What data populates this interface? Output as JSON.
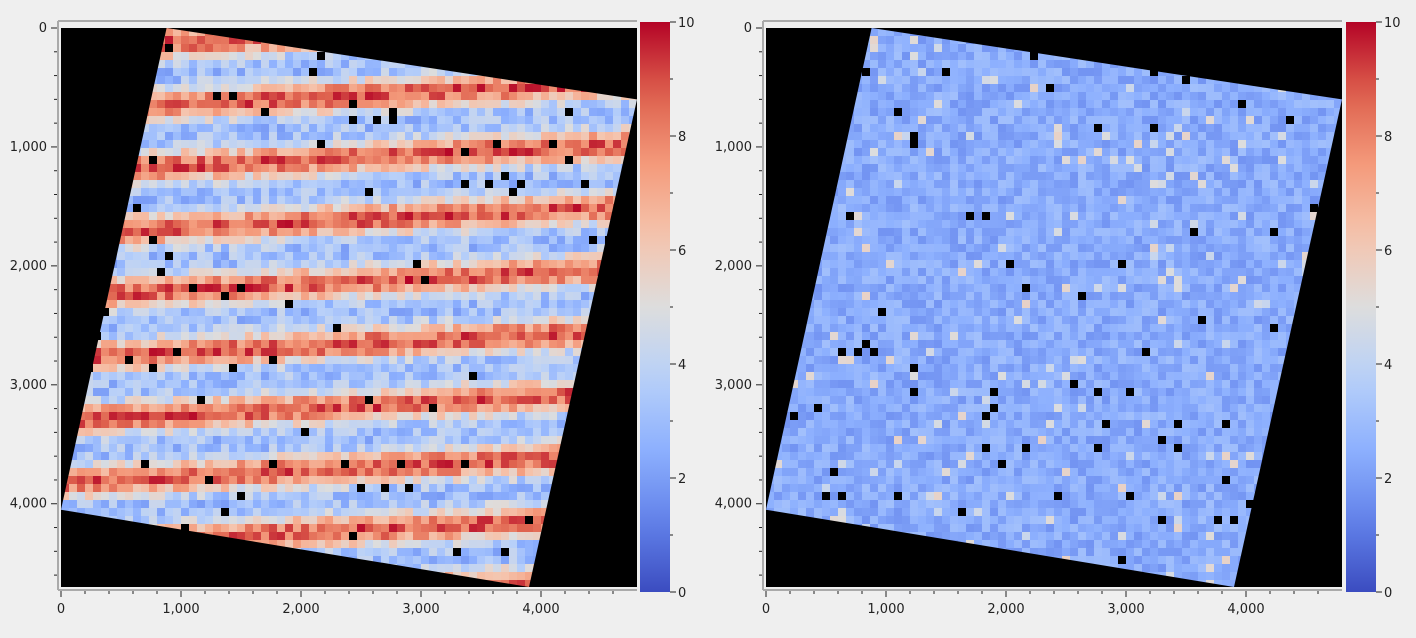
{
  "chart_data": [
    {
      "type": "heatmap",
      "title": "",
      "xlabel": "",
      "ylabel": "",
      "xlim": [
        0,
        4800
      ],
      "ylim": [
        4700,
        0
      ],
      "x_ticks": [
        0,
        1000,
        2000,
        3000,
        4000
      ],
      "y_ticks": [
        0,
        1000,
        2000,
        3000,
        4000
      ],
      "x_tick_labels": [
        "0",
        "1,000",
        "2,000",
        "3,000",
        "4,000"
      ],
      "y_tick_labels": [
        "0",
        "1,000",
        "2,000",
        "3,000",
        "4,000"
      ],
      "no_data_color": "#000000",
      "footprint": [
        [
          880,
          0
        ],
        [
          4800,
          600
        ],
        [
          3900,
          4700
        ],
        [
          0,
          4050
        ]
      ],
      "pattern": "horizontal-stripes",
      "value_range_typical": [
        0.5,
        10
      ],
      "colorbar": {
        "colormap": "coolwarm",
        "range": [
          0,
          10
        ],
        "ticks": [
          0,
          2,
          4,
          6,
          8,
          10
        ],
        "tick_labels": [
          "0",
          "2",
          "4",
          "6",
          "8",
          "10"
        ]
      }
    },
    {
      "type": "heatmap",
      "title": "",
      "xlabel": "",
      "ylabel": "",
      "xlim": [
        0,
        4800
      ],
      "ylim": [
        4700,
        0
      ],
      "x_ticks": [
        0,
        1000,
        2000,
        3000,
        4000
      ],
      "y_ticks": [
        0,
        1000,
        2000,
        3000,
        4000
      ],
      "x_tick_labels": [
        "0",
        "1,000",
        "2,000",
        "3,000",
        "4,000"
      ],
      "y_tick_labels": [
        "0",
        "1,000",
        "2,000",
        "3,000",
        "4,000"
      ],
      "no_data_color": "#000000",
      "footprint": [
        [
          880,
          0
        ],
        [
          4800,
          600
        ],
        [
          3900,
          4700
        ],
        [
          0,
          4050
        ]
      ],
      "pattern": "uniform-low",
      "value_range_typical": [
        0.5,
        4
      ],
      "colorbar": {
        "colormap": "coolwarm",
        "range": [
          0,
          10
        ],
        "ticks": [
          0,
          2,
          4,
          6,
          8,
          10
        ],
        "tick_labels": [
          "0",
          "2",
          "4",
          "6",
          "8",
          "10"
        ]
      }
    }
  ]
}
